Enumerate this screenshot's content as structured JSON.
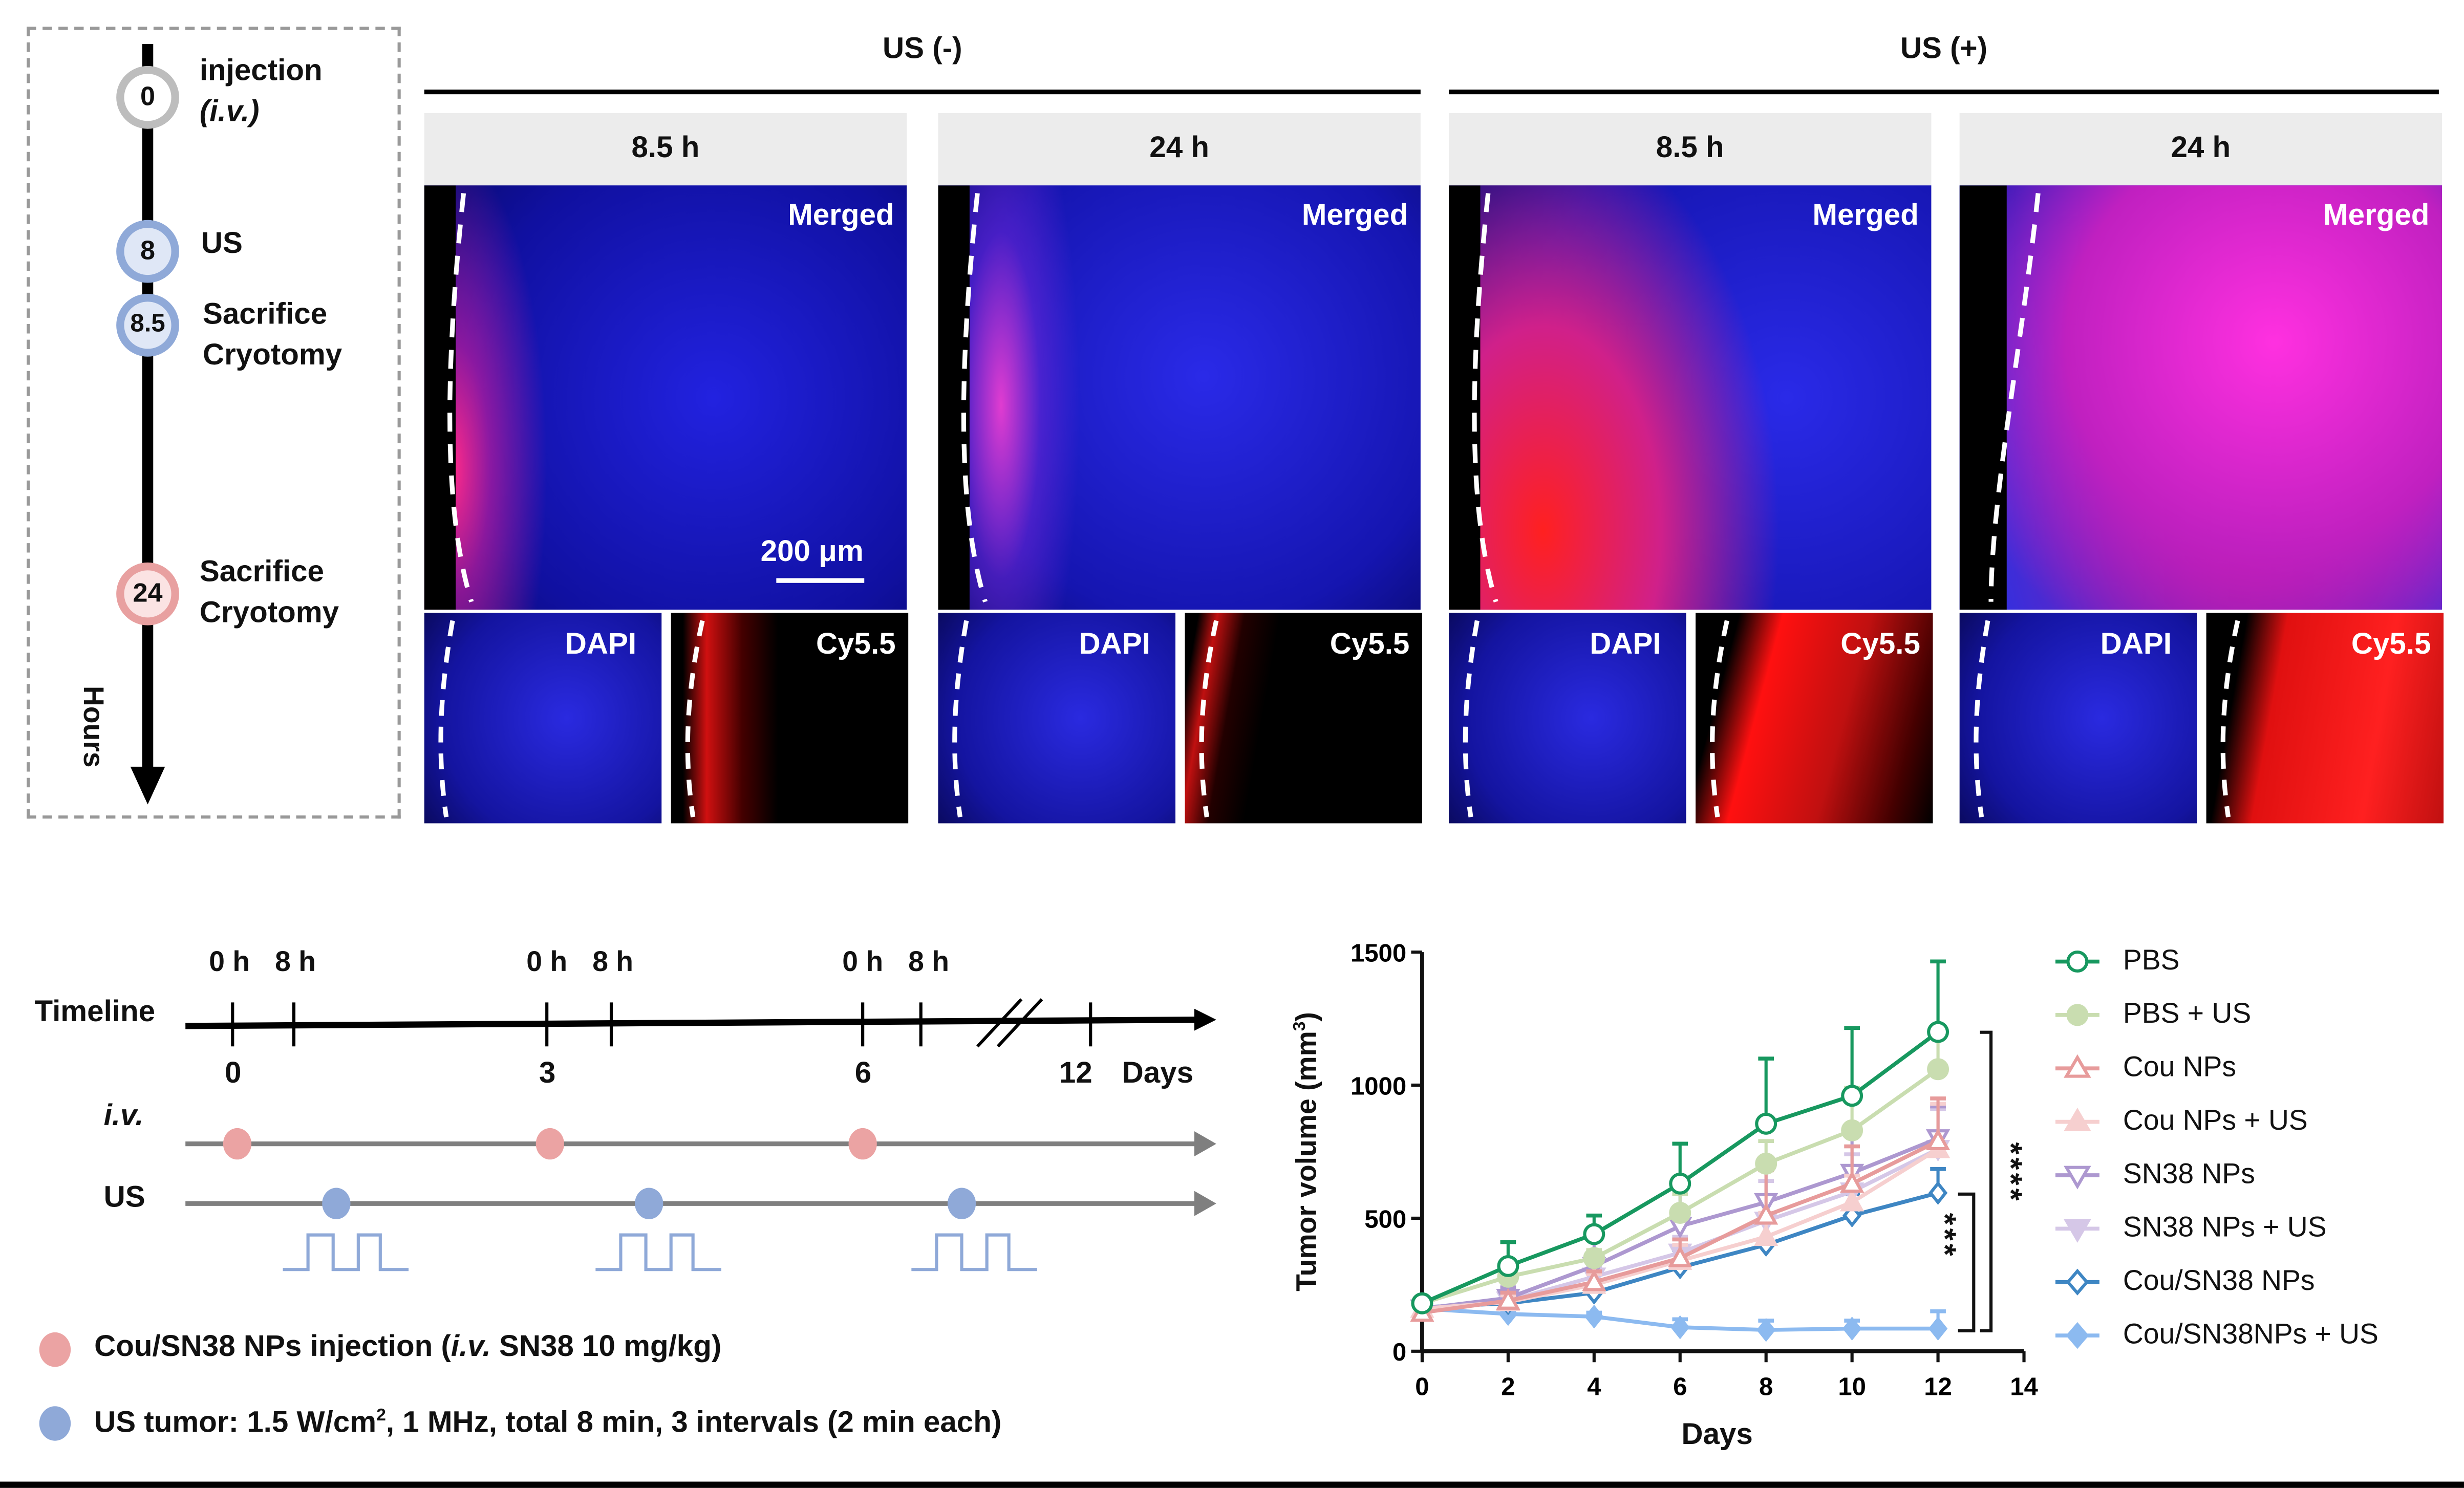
{
  "top_timeline": {
    "axis_label": "Hours",
    "events": [
      {
        "value": "0",
        "label_lines": [
          "injection",
          "(i.v.)"
        ],
        "color": "#bdbdbd"
      },
      {
        "value": "8",
        "label_lines": [
          "US"
        ],
        "color": "#8fa9d8"
      },
      {
        "value": "8.5",
        "label_lines": [
          "Sacrifice",
          "Cryotomy"
        ],
        "color": "#8fa9d8"
      },
      {
        "value": "24",
        "label_lines": [
          "Sacrifice",
          "Cryotomy"
        ],
        "color": "#e8a0a0"
      }
    ]
  },
  "imaging": {
    "groups": [
      {
        "title": "US (-)",
        "panels": [
          {
            "time": "8.5 h",
            "merged": "Merged",
            "dapi": "DAPI",
            "cy": "Cy5.5",
            "scale_bar": "200 μm"
          },
          {
            "time": "24 h",
            "merged": "Merged",
            "dapi": "DAPI",
            "cy": "Cy5.5"
          }
        ]
      },
      {
        "title": "US (+)",
        "panels": [
          {
            "time": "8.5 h",
            "merged": "Merged",
            "dapi": "DAPI",
            "cy": "Cy5.5"
          },
          {
            "time": "24 h",
            "merged": "Merged",
            "dapi": "DAPI",
            "cy": "Cy5.5"
          }
        ]
      }
    ]
  },
  "schedule": {
    "timeline_label": "Timeline",
    "hour_labels": [
      "0 h",
      "8 h",
      "0 h",
      "8 h",
      "0 h",
      "8 h"
    ],
    "day_labels": [
      "0",
      "3",
      "6",
      "12"
    ],
    "days_unit": "Days",
    "iv_label": "i.v.",
    "us_label": "US",
    "legend": {
      "injection": {
        "text": "Cou/SN38 NPs injection (",
        "italic": "i.v.",
        "rest": " SN38 10 mg/kg)",
        "color": "#eba3a3"
      },
      "us": {
        "text": "US tumor: 1.5 W/cm",
        "sup": "2",
        "rest": ", 1 MHz, total 8 min, 3 intervals (2 min each)",
        "color": "#8fa9d8"
      }
    }
  },
  "chart_data": {
    "type": "line",
    "xlabel": "Days",
    "ylabel": "Tumor volume (mm",
    "ylabel_sup": "3",
    "ylabel_end": ")",
    "xlim": [
      0,
      14
    ],
    "ylim": [
      0,
      1500
    ],
    "xticks": [
      0,
      2,
      4,
      6,
      8,
      10,
      12,
      14
    ],
    "yticks": [
      0,
      500,
      1000,
      1500
    ],
    "grid": false,
    "legend_position": "right",
    "x": [
      0,
      2,
      4,
      6,
      8,
      10,
      12
    ],
    "series": [
      {
        "name": "PBS",
        "color": "#17985f",
        "marker": "circle-open",
        "values": [
          180,
          320,
          440,
          630,
          855,
          960,
          1200
        ],
        "error_upper": [
          200,
          410,
          510,
          780,
          1100,
          1215,
          1465
        ]
      },
      {
        "name": "PBS + US",
        "color": "#c9ddb0",
        "marker": "circle-filled",
        "values": [
          180,
          280,
          350,
          520,
          705,
          830,
          1060
        ],
        "error_upper": [
          200,
          310,
          380,
          590,
          790,
          990,
          1190
        ]
      },
      {
        "name": "Cou NPs",
        "color": "#e79b9b",
        "marker": "triangle-up-open",
        "values": [
          145,
          190,
          260,
          350,
          510,
          630,
          790
        ],
        "error_upper": [
          160,
          220,
          300,
          420,
          680,
          770,
          950
        ]
      },
      {
        "name": "Cou NPs + US",
        "color": "#f6cfcf",
        "marker": "triangle-up-filled",
        "values": [
          160,
          185,
          250,
          340,
          430,
          560,
          760
        ],
        "error_upper": [
          175,
          210,
          290,
          400,
          520,
          660,
          930
        ]
      },
      {
        "name": "SN38 NPs",
        "color": "#ad98d0",
        "marker": "triangle-down-open",
        "values": [
          160,
          200,
          320,
          470,
          560,
          670,
          800
        ],
        "error_upper": [
          180,
          240,
          440,
          640,
          720,
          810,
          920
        ]
      },
      {
        "name": "SN38 NPs + US",
        "color": "#d5c7e7",
        "marker": "triangle-down-filled",
        "values": [
          160,
          190,
          280,
          370,
          490,
          600,
          760
        ],
        "error_upper": [
          180,
          220,
          320,
          430,
          640,
          740,
          910
        ]
      },
      {
        "name": "Cou/SN38 NPs",
        "color": "#3e86c3",
        "marker": "diamond-open",
        "values": [
          165,
          180,
          220,
          315,
          400,
          510,
          595
        ],
        "error_upper": [
          190,
          230,
          250,
          380,
          490,
          590,
          685
        ]
      },
      {
        "name": "Cou/SN38NPs + US",
        "color": "#8cbaf0",
        "marker": "diamond-filled",
        "values": [
          160,
          140,
          130,
          90,
          80,
          85,
          85
        ],
        "error_upper": [
          175,
          155,
          145,
          120,
          115,
          115,
          150
        ]
      }
    ],
    "annotations": [
      {
        "text": "***",
        "between": [
          "Cou/SN38 NPs",
          "Cou/SN38NPs + US"
        ]
      },
      {
        "text": "****",
        "between": [
          "PBS",
          "Cou/SN38NPs + US"
        ]
      }
    ]
  }
}
